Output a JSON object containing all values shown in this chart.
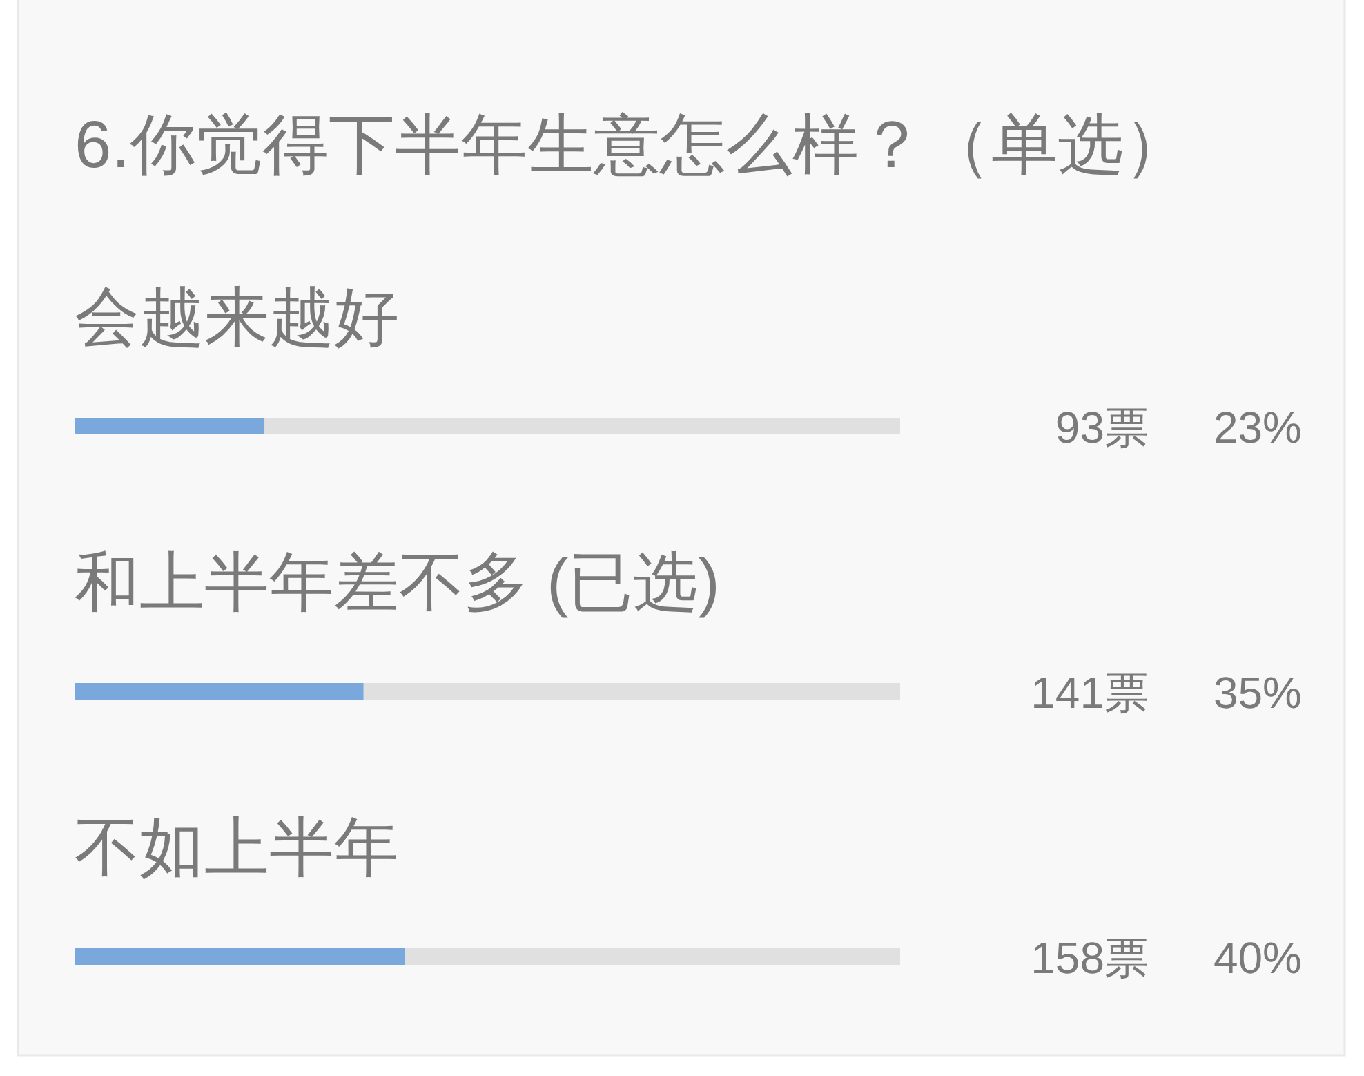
{
  "chart_data": {
    "type": "bar",
    "orientation": "horizontal",
    "title": "6.你觉得下半年生意怎么样？（单选）",
    "categories": [
      "会越来越好",
      "和上半年差不多 (已选)",
      "不如上半年"
    ],
    "values": [
      23,
      35,
      40
    ],
    "value_labels": [
      "23%",
      "35%",
      "40%"
    ],
    "color": "#7aa8dc",
    "annotations": [
      "93票",
      "141票",
      "158票"
    ],
    "xlim": [
      0,
      100
    ],
    "tick_labels": "y"
  }
}
